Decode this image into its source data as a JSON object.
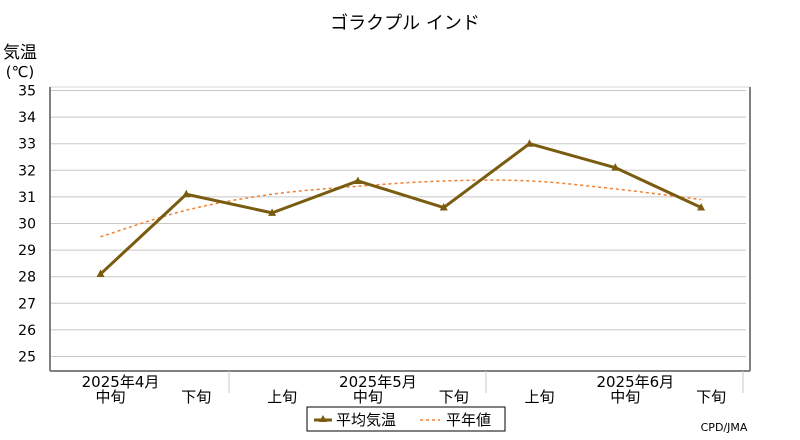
{
  "chart_data": {
    "type": "line",
    "title": "ゴラクプル インド",
    "ylabel": "気温",
    "yunit": "(℃)",
    "ylim": [
      25,
      35
    ],
    "yticks": [
      25,
      26,
      27,
      28,
      29,
      30,
      31,
      32,
      33,
      34,
      35
    ],
    "grid": true,
    "categories": [
      "2025年4月 中旬",
      "2025年4月 下旬",
      "2025年5月 上旬",
      "2025年5月 中旬",
      "2025年5月 下旬",
      "2025年6月 上旬",
      "2025年6月 中旬",
      "2025年6月 下旬"
    ],
    "x_tick_labels": [
      "中旬",
      "下旬",
      "上旬",
      "中旬",
      "下旬",
      "上旬",
      "中旬",
      "下旬"
    ],
    "month_labels": [
      {
        "label": "2025年4月",
        "index": 0
      },
      {
        "label": "2025年5月",
        "index": 3
      },
      {
        "label": "2025年6月",
        "index": 6
      }
    ],
    "series": [
      {
        "name": "平均気温",
        "values": [
          28.1,
          31.1,
          30.4,
          31.6,
          30.6,
          33.0,
          32.1,
          30.6
        ],
        "color": "#7a5c10",
        "style": "solid",
        "marker": "triangle"
      },
      {
        "name": "平年値",
        "values": [
          29.5,
          30.5,
          31.1,
          31.4,
          31.6,
          31.6,
          31.3,
          30.9
        ],
        "color": "#f08030",
        "style": "dashed"
      }
    ],
    "legend_position": "bottom-center",
    "source": "CPD/JMA"
  }
}
